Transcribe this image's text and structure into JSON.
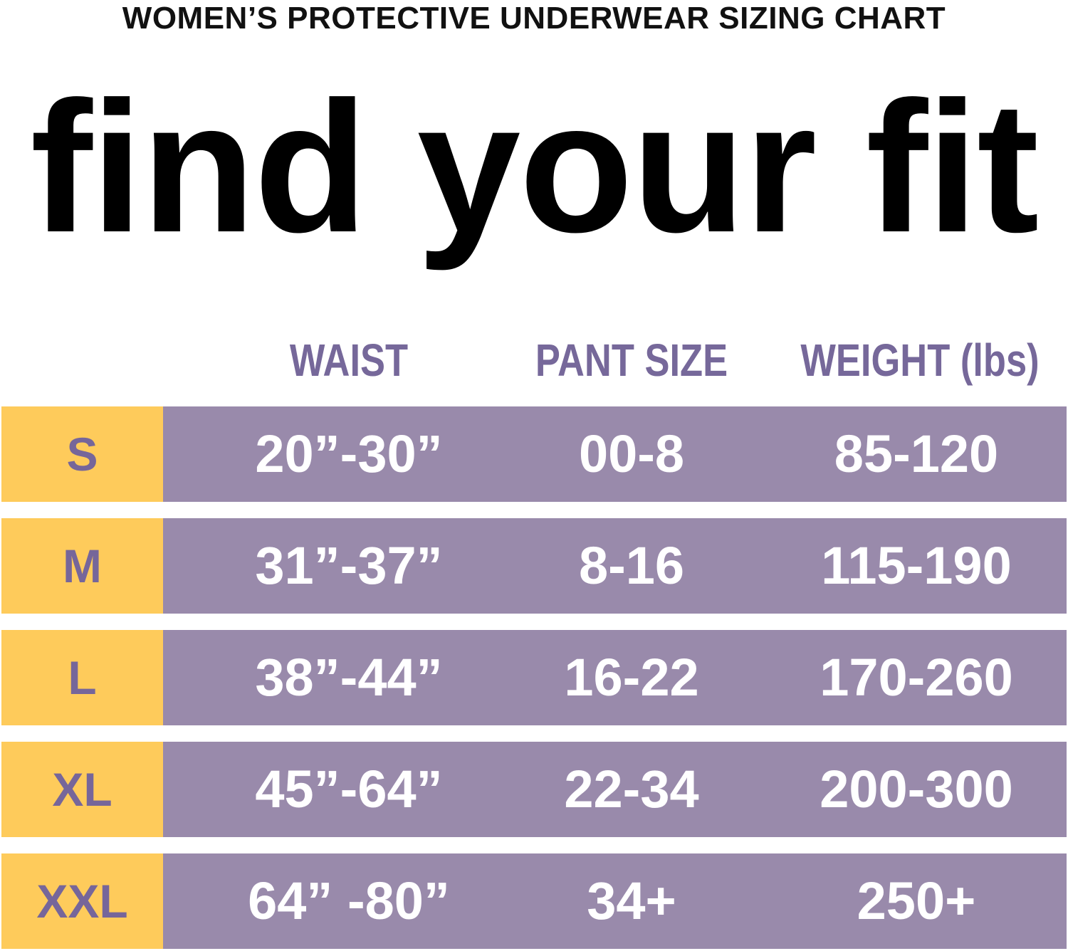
{
  "title": "WOMEN’S PROTECTIVE UNDERWEAR SIZING CHART",
  "headline": "find your fit",
  "colors": {
    "size_cell": "#fecb5b",
    "row_band": "#998aab",
    "accent_text": "#76689a"
  },
  "columns": [
    "WAIST",
    "PANT SIZE",
    "WEIGHT (lbs)"
  ],
  "rows": [
    {
      "size": "S",
      "waist": "20”-30”",
      "pant": "00-8",
      "weight": "85-120"
    },
    {
      "size": "M",
      "waist": "31”-37”",
      "pant": "8-16",
      "weight": "115-190"
    },
    {
      "size": "L",
      "waist": "38”-44”",
      "pant": "16-22",
      "weight": "170-260"
    },
    {
      "size": "XL",
      "waist": "45”-64”",
      "pant": "22-34",
      "weight": "200-300"
    },
    {
      "size": "XXL",
      "waist": "64” -80”",
      "pant": "34+",
      "weight": "250+"
    }
  ]
}
